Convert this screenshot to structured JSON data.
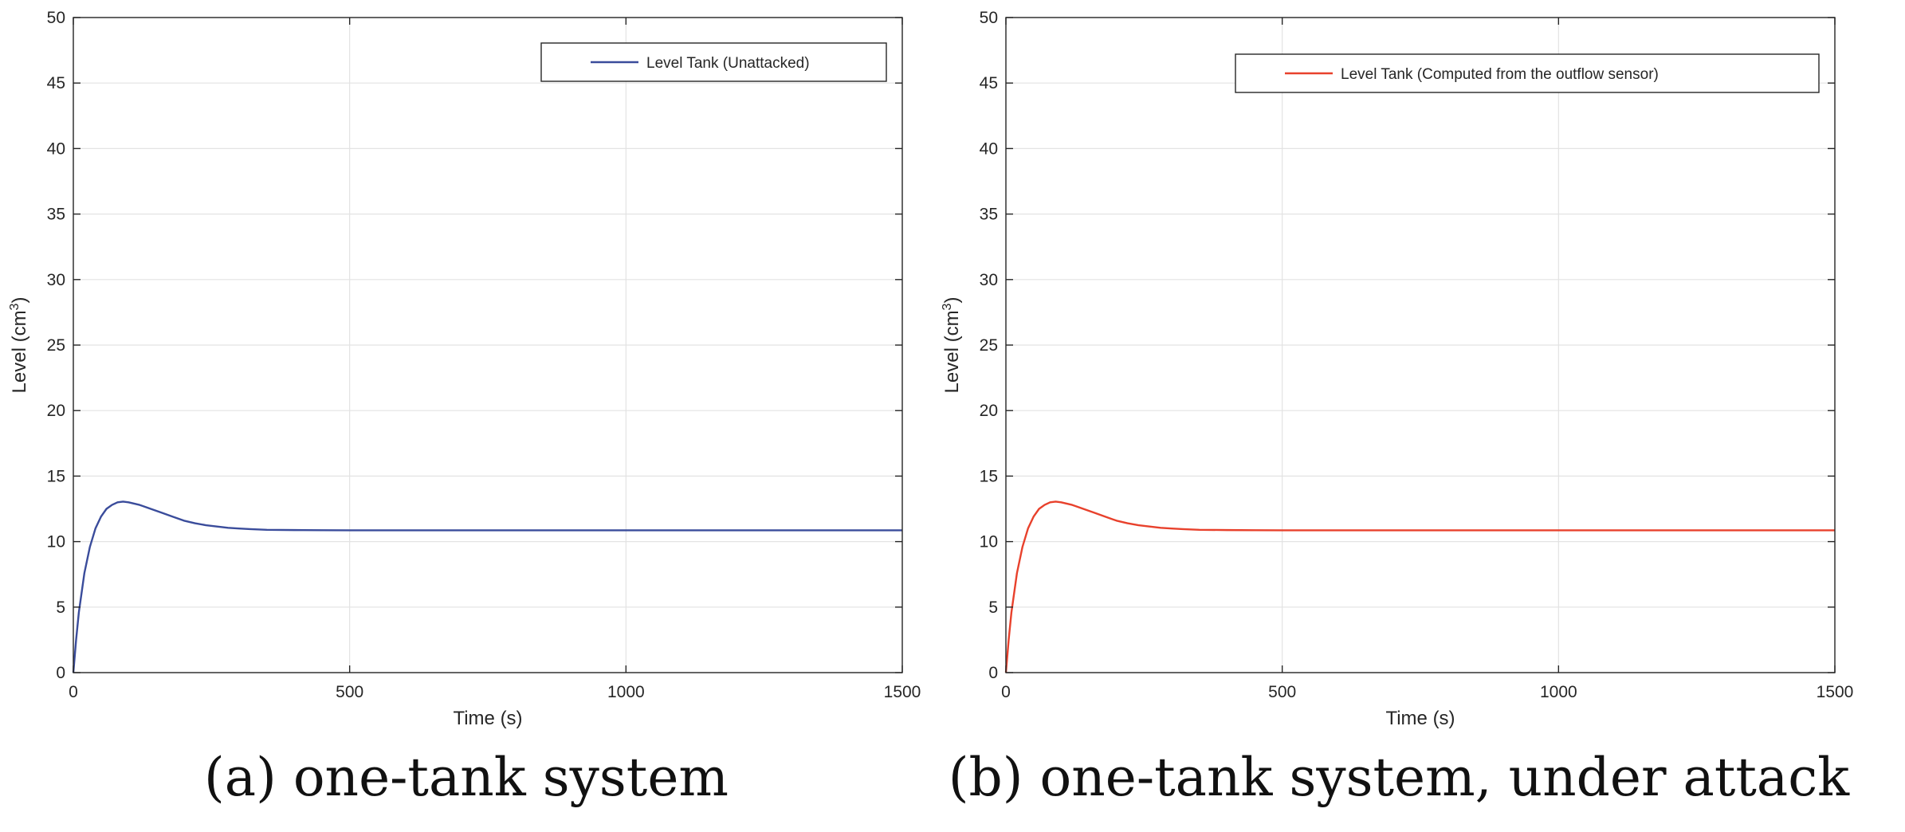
{
  "chart_data": [
    {
      "type": "line",
      "panel": "a",
      "xlabel": "Time (s)",
      "ylabel_main": "Level (cm",
      "ylabel_sup": "3",
      "ylabel_close": ")",
      "xlim": [
        0,
        1500
      ],
      "ylim": [
        0,
        50
      ],
      "xticks": [
        "0",
        "500",
        "1000",
        "1500"
      ],
      "yticks": [
        "0",
        "5",
        "10",
        "15",
        "20",
        "25",
        "30",
        "35",
        "40",
        "45",
        "50"
      ],
      "grid": true,
      "legend_position": "top-right",
      "caption": "(a) one-tank system",
      "series": [
        {
          "name": "Level Tank (Unattacked)",
          "color": "#3a4c9b",
          "x": [
            0,
            5,
            10,
            20,
            30,
            40,
            50,
            60,
            70,
            80,
            90,
            100,
            120,
            140,
            160,
            180,
            200,
            220,
            240,
            260,
            280,
            300,
            320,
            350,
            400,
            450,
            500,
            600,
            800,
            1000,
            1200,
            1500
          ],
          "y": [
            0,
            2.5,
            4.6,
            7.6,
            9.6,
            11.0,
            11.9,
            12.5,
            12.8,
            13.0,
            13.05,
            13.0,
            12.8,
            12.5,
            12.2,
            11.9,
            11.6,
            11.4,
            11.25,
            11.15,
            11.05,
            11.0,
            10.95,
            10.9,
            10.88,
            10.87,
            10.86,
            10.86,
            10.86,
            10.86,
            10.86,
            10.86
          ]
        }
      ]
    },
    {
      "type": "line",
      "panel": "b",
      "xlabel": "Time (s)",
      "ylabel_main": "Level (cm",
      "ylabel_sup": "3",
      "ylabel_close": ")",
      "xlim": [
        0,
        1500
      ],
      "ylim": [
        0,
        50
      ],
      "xticks": [
        "0",
        "500",
        "1000",
        "1500"
      ],
      "yticks": [
        "0",
        "5",
        "10",
        "15",
        "20",
        "25",
        "30",
        "35",
        "40",
        "45",
        "50"
      ],
      "grid": true,
      "legend_position": "top-right",
      "caption": "(b) one-tank system, under attack",
      "series": [
        {
          "name": "Level Tank (Computed from the outflow sensor)",
          "color": "#e8412c",
          "x": [
            0,
            5,
            10,
            20,
            30,
            40,
            50,
            60,
            70,
            80,
            90,
            100,
            120,
            140,
            160,
            180,
            200,
            220,
            240,
            260,
            280,
            300,
            320,
            350,
            400,
            450,
            500,
            600,
            800,
            1000,
            1200,
            1500
          ],
          "y": [
            0,
            2.5,
            4.6,
            7.6,
            9.6,
            11.0,
            11.9,
            12.5,
            12.8,
            13.0,
            13.05,
            13.0,
            12.8,
            12.5,
            12.2,
            11.9,
            11.6,
            11.4,
            11.25,
            11.15,
            11.05,
            11.0,
            10.95,
            10.9,
            10.88,
            10.87,
            10.86,
            10.86,
            10.86,
            10.86,
            10.86,
            10.86
          ]
        }
      ]
    }
  ]
}
